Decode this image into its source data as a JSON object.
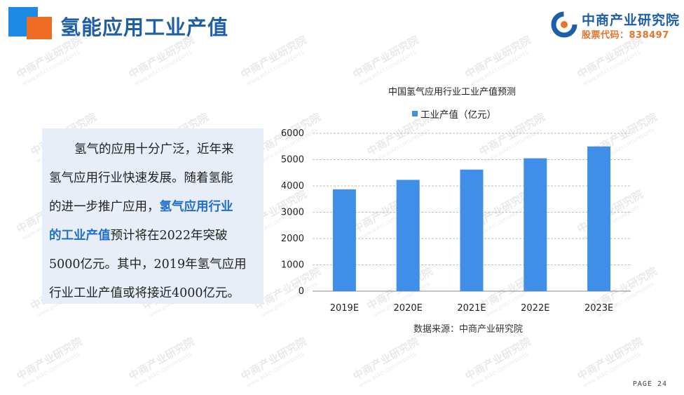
{
  "header": {
    "title": "氢能应用工业产值"
  },
  "logo": {
    "name": "中商产业研究院",
    "stock_code": "股票代码：838497"
  },
  "paragraph": {
    "line1": "氢气的应用十分广泛，近年来",
    "line2": "氢气应用行业快速发展。随着氢能",
    "line3_a": "的进一步推广应用，",
    "line3_b": "氢气应用行业",
    "line4_a": "的工业产值",
    "line4_b": "预计将在2022年突破",
    "line5": "5000亿元。其中，2019年氢气应用",
    "line6": "行业工业产值或将接近4000亿元。"
  },
  "chart_data": {
    "type": "bar",
    "title": "中国氢气应用行业工业产值预测",
    "categories": [
      "2019E",
      "2020E",
      "2021E",
      "2022E",
      "2023E"
    ],
    "series": [
      {
        "name": "工业产值（亿元）",
        "values": [
          3870,
          4230,
          4620,
          5050,
          5500
        ]
      }
    ],
    "ylim": [
      0,
      6000
    ],
    "yticks": [
      0,
      1000,
      2000,
      3000,
      4000,
      5000,
      6000
    ],
    "grid": true,
    "legend": "top",
    "colors": {
      "bar": "#3f8fe8",
      "grid": "#bfbfbf"
    }
  },
  "source": "数据来源：中商产业研究院",
  "page": "PAGE 24",
  "watermark": {
    "text": "中商产业研究院",
    "url": "www.askci.com/reports"
  }
}
